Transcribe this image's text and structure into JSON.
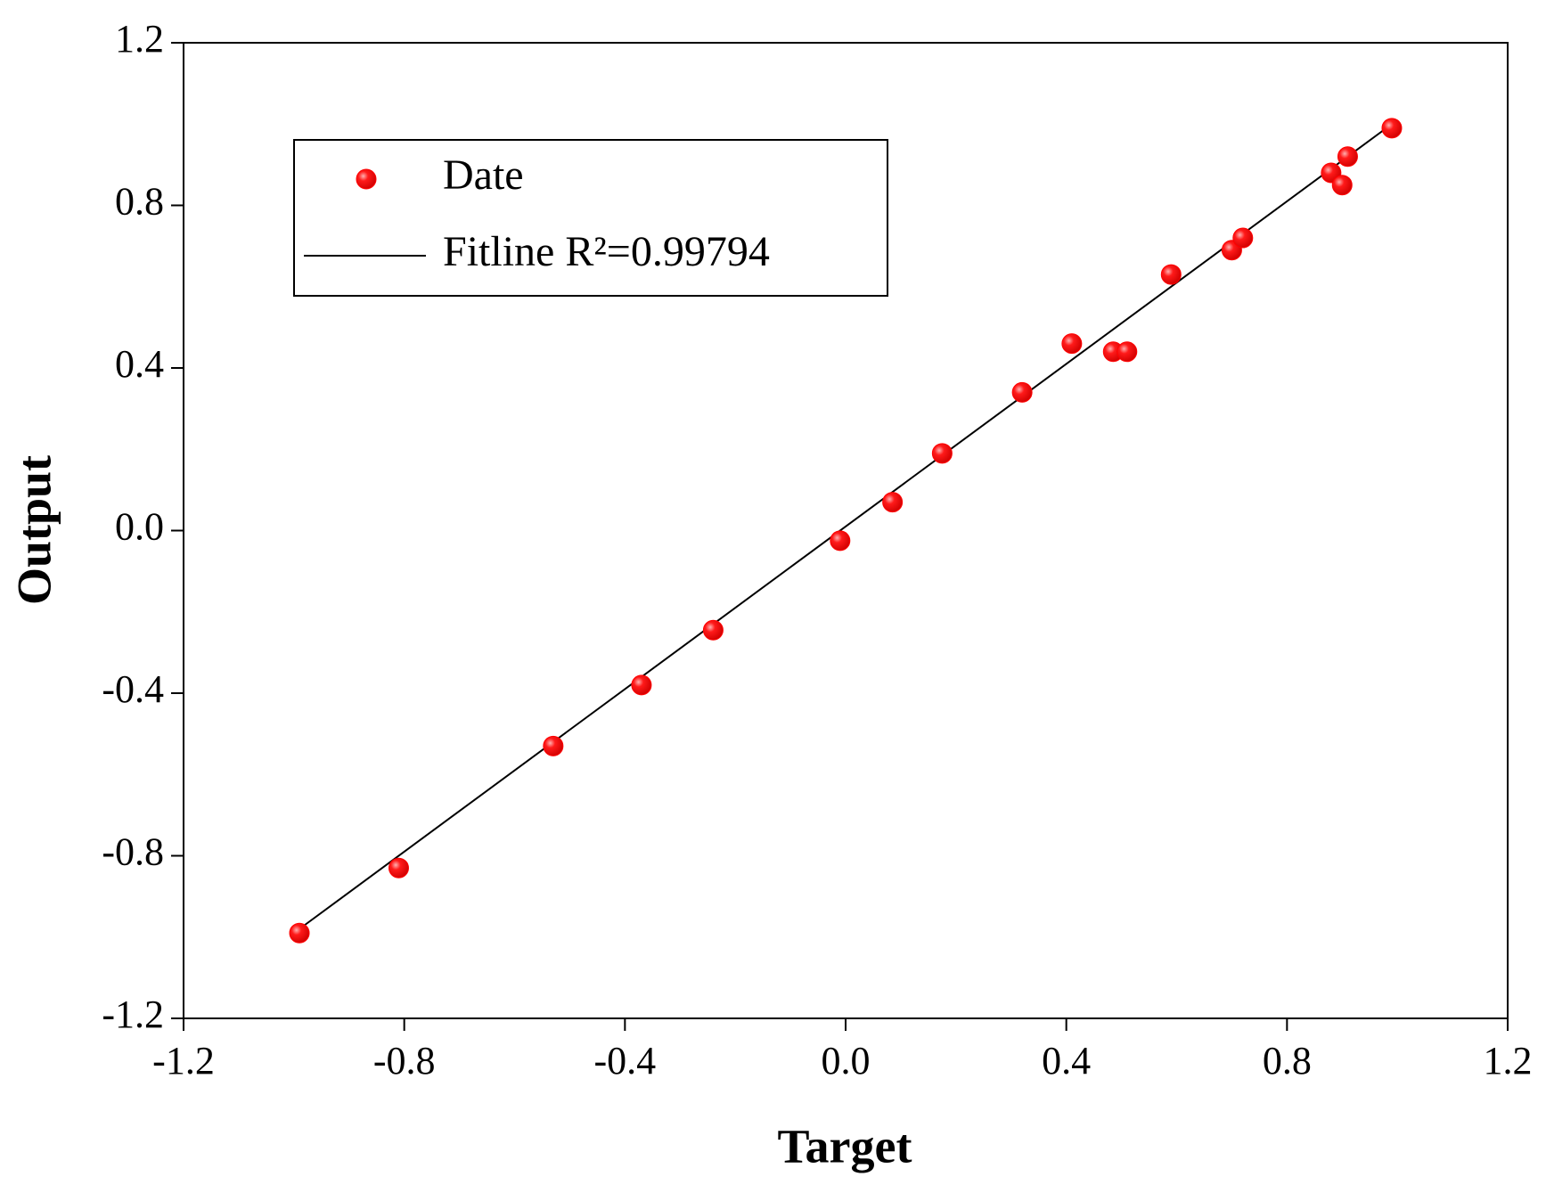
{
  "chart_data": {
    "type": "scatter",
    "xlabel": "Target",
    "ylabel": "Output",
    "xlim": [
      -1.2,
      1.2
    ],
    "ylim": [
      -1.2,
      1.2
    ],
    "xticks": [
      -1.2,
      -0.8,
      -0.4,
      {
        "value": 0,
        "label": "0.0"
      },
      0.4,
      0.8,
      1.2
    ],
    "yticks": [
      -1.2,
      -0.8,
      -0.4,
      {
        "value": 0,
        "label": "0.0"
      },
      0.4,
      0.8,
      1.2
    ],
    "legend": "upper left",
    "series": [
      {
        "name": "Date",
        "kind": "points",
        "color": "#ff0000",
        "x": [
          -0.99,
          -0.81,
          -0.53,
          -0.37,
          -0.24,
          -0.01,
          0.085,
          0.175,
          0.32,
          0.41,
          0.485,
          0.51,
          0.59,
          0.7,
          0.72,
          0.88,
          0.9,
          0.91,
          0.99
        ],
        "values": [
          -0.99,
          -0.83,
          -0.53,
          -0.38,
          -0.245,
          -0.025,
          0.07,
          0.19,
          0.34,
          0.46,
          0.44,
          0.44,
          0.63,
          0.69,
          0.72,
          0.88,
          0.85,
          0.92,
          0.99
        ]
      },
      {
        "name": "Fitline R²=0.99794",
        "kind": "line",
        "color": "#000000",
        "x": [
          -0.99,
          0.99
        ],
        "values": [
          -0.98,
          1.0
        ]
      }
    ]
  }
}
